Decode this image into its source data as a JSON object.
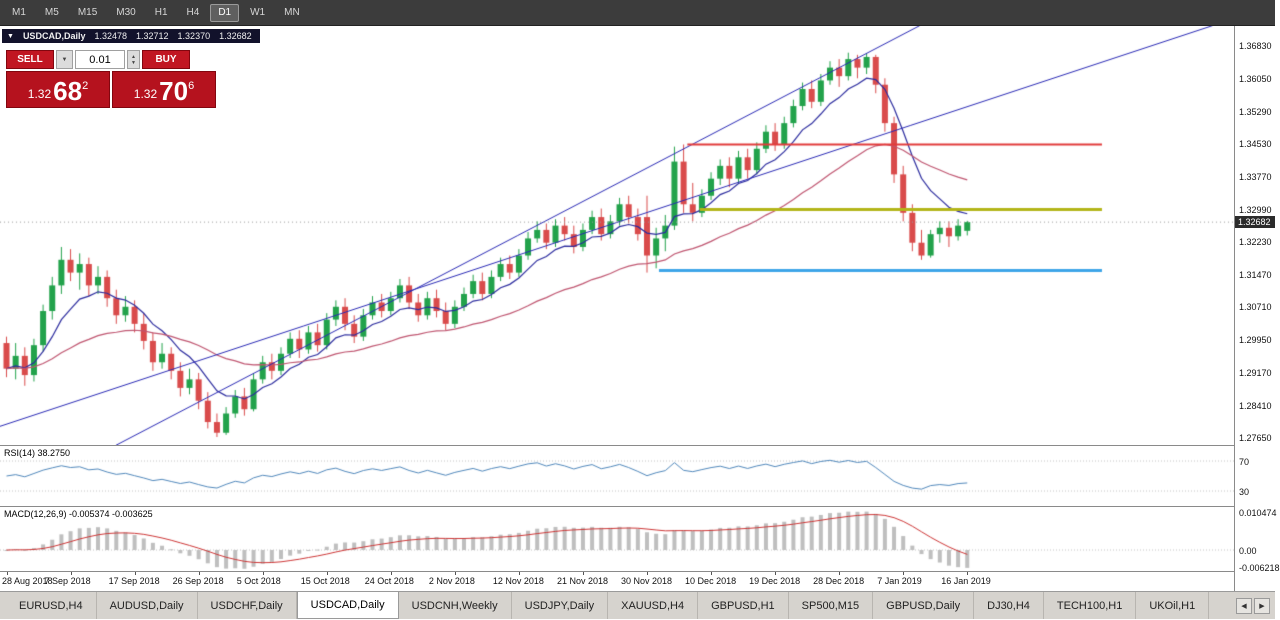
{
  "toolbar": {
    "timeframes": [
      "M1",
      "M5",
      "M15",
      "M30",
      "H1",
      "H4",
      "D1",
      "W1",
      "MN"
    ],
    "active_timeframe": "D1"
  },
  "chart": {
    "title": "USDCAD,Daily",
    "ohlc": {
      "open": "1.32478",
      "high": "1.32712",
      "low": "1.32370",
      "close": "1.32682"
    },
    "current_price": "1.32682",
    "price_axis": [
      "1.36830",
      "1.36050",
      "1.35290",
      "1.34530",
      "1.33770",
      "1.32990",
      "1.32230",
      "1.31470",
      "1.30710",
      "1.29950",
      "1.29170",
      "1.28410",
      "1.27650"
    ],
    "date_axis": [
      "28 Aug 2018",
      "7 Sep 2018",
      "17 Sep 2018",
      "26 Sep 2018",
      "5 Oct 2018",
      "15 Oct 2018",
      "24 Oct 2018",
      "2 Nov 2018",
      "12 Nov 2018",
      "21 Nov 2018",
      "30 Nov 2018",
      "10 Dec 2018",
      "19 Dec 2018",
      "28 Dec 2018",
      "7 Jan 2019",
      "16 Jan 2019"
    ]
  },
  "trade_panel": {
    "sell_label": "SELL",
    "buy_label": "BUY",
    "volume": "0.01",
    "sell_price": {
      "prefix": "1.32",
      "big": "68",
      "sup": "2"
    },
    "buy_price": {
      "prefix": "1.32",
      "big": "70",
      "sup": "6"
    }
  },
  "rsi": {
    "label": "RSI(14) 38.2750",
    "levels": [
      "70",
      "30"
    ]
  },
  "macd": {
    "label": "MACD(12,26,9) -0.005374 -0.003625",
    "axis": [
      "0.010474",
      "0.00",
      "-0.006218"
    ]
  },
  "tabs": {
    "items": [
      "EURUSD,H4",
      "AUDUSD,Daily",
      "USDCHF,Daily",
      "USDCAD,Daily",
      "USDCNH,Weekly",
      "USDJPY,Daily",
      "XAUUSD,H4",
      "GBPUSD,H1",
      "SP500,M15",
      "GBPUSD,Daily",
      "DJ30,H4",
      "TECH100,H1",
      "UKOil,H1"
    ],
    "active": "USDCAD,Daily"
  },
  "icons": {
    "chart_menu": "▼",
    "lot_down": "▼",
    "spin_up": "▲",
    "spin_down": "▼",
    "scroll_left": "◀",
    "scroll_right": "▶"
  },
  "colors": {
    "bull": "#22a24b",
    "bear": "#d94b4b",
    "ma_fast": "#2b2b9e",
    "ma_slow": "#bf5570",
    "trendline": "#2828b4",
    "rsi_line": "#4e86ba",
    "macd_signal": "#cc3333",
    "macd_hist": "#bfbfbf",
    "panel_red": "#b5121e"
  },
  "chart_data": {
    "type": "candlestick",
    "symbol": "USDCAD",
    "timeframe": "Daily",
    "price_range_axis": [
      1.2765,
      1.3683
    ],
    "moving_averages": [
      {
        "period": 8
      },
      {
        "period": 32
      }
    ],
    "horizontal_levels": [
      {
        "price": 1.345,
        "color": "#e23b3b",
        "width": 2,
        "x1": 0.557,
        "x2": 0.893
      },
      {
        "price": 1.3298,
        "color": "#b3b518",
        "width": 3,
        "x1": 0.567,
        "x2": 0.893
      },
      {
        "price": 1.3155,
        "color": "#3da5e8",
        "width": 3,
        "x1": 0.534,
        "x2": 0.893
      }
    ],
    "trendlines": [
      {
        "p1": [
          0.0,
          1.279
        ],
        "p2": [
          1.0,
          1.3745
        ]
      },
      {
        "p1": [
          0.13,
          1.28
        ],
        "p2": [
          0.7,
          1.366
        ]
      }
    ],
    "indicators": {
      "rsi": {
        "period": 14,
        "last": 38.275,
        "levels": [
          70,
          30
        ]
      },
      "macd": {
        "fast": 12,
        "slow": 26,
        "signal": 9,
        "last_macd": -0.005374,
        "last_signal": -0.003625
      }
    },
    "candles": [
      [
        1.2985,
        1.3,
        1.2905,
        1.2925
      ],
      [
        1.2925,
        1.2985,
        1.29,
        1.2955
      ],
      [
        1.2955,
        1.2975,
        1.2885,
        1.291
      ],
      [
        1.291,
        1.2995,
        1.2895,
        1.298
      ],
      [
        1.298,
        1.3075,
        1.2965,
        1.306
      ],
      [
        1.306,
        1.314,
        1.304,
        1.312
      ],
      [
        1.312,
        1.321,
        1.31,
        1.318
      ],
      [
        1.318,
        1.3205,
        1.313,
        1.315
      ],
      [
        1.315,
        1.3195,
        1.311,
        1.317
      ],
      [
        1.317,
        1.3185,
        1.3095,
        1.312
      ],
      [
        1.312,
        1.3165,
        1.31,
        1.314
      ],
      [
        1.314,
        1.3155,
        1.307,
        1.309
      ],
      [
        1.309,
        1.311,
        1.303,
        1.305
      ],
      [
        1.305,
        1.3095,
        1.3035,
        1.307
      ],
      [
        1.307,
        1.3085,
        1.301,
        1.303
      ],
      [
        1.303,
        1.3055,
        1.297,
        1.299
      ],
      [
        1.299,
        1.301,
        1.292,
        1.294
      ],
      [
        1.294,
        1.2985,
        1.2925,
        1.296
      ],
      [
        1.296,
        1.2975,
        1.29,
        1.292
      ],
      [
        1.292,
        1.294,
        1.286,
        1.288
      ],
      [
        1.288,
        1.2925,
        1.2865,
        1.29
      ],
      [
        1.29,
        1.2915,
        1.283,
        1.285
      ],
      [
        1.285,
        1.287,
        1.2785,
        1.28
      ],
      [
        1.28,
        1.282,
        1.2765,
        1.2775
      ],
      [
        1.2775,
        1.2835,
        1.277,
        1.282
      ],
      [
        1.282,
        1.2875,
        1.281,
        1.286
      ],
      [
        1.286,
        1.288,
        1.2815,
        1.283
      ],
      [
        1.283,
        1.2915,
        1.2825,
        1.29
      ],
      [
        1.29,
        1.2955,
        1.289,
        1.294
      ],
      [
        1.294,
        1.296,
        1.29,
        1.292
      ],
      [
        1.292,
        1.2975,
        1.291,
        1.296
      ],
      [
        1.296,
        1.301,
        1.295,
        1.2995
      ],
      [
        1.2995,
        1.3015,
        1.295,
        1.297
      ],
      [
        1.297,
        1.3025,
        1.296,
        1.301
      ],
      [
        1.301,
        1.303,
        1.2965,
        1.298
      ],
      [
        1.298,
        1.3055,
        1.297,
        1.304
      ],
      [
        1.304,
        1.3085,
        1.3025,
        1.307
      ],
      [
        1.307,
        1.309,
        1.3015,
        1.303
      ],
      [
        1.303,
        1.305,
        1.2985,
        1.3
      ],
      [
        1.3,
        1.3065,
        1.299,
        1.305
      ],
      [
        1.305,
        1.3095,
        1.304,
        1.308
      ],
      [
        1.308,
        1.31,
        1.3045,
        1.306
      ],
      [
        1.306,
        1.3105,
        1.305,
        1.309
      ],
      [
        1.309,
        1.3135,
        1.308,
        1.312
      ],
      [
        1.312,
        1.314,
        1.3065,
        1.308
      ],
      [
        1.308,
        1.31,
        1.3035,
        1.305
      ],
      [
        1.305,
        1.3105,
        1.304,
        1.309
      ],
      [
        1.309,
        1.311,
        1.3045,
        1.306
      ],
      [
        1.306,
        1.308,
        1.3015,
        1.303
      ],
      [
        1.303,
        1.3085,
        1.302,
        1.307
      ],
      [
        1.307,
        1.3115,
        1.306,
        1.31
      ],
      [
        1.31,
        1.3145,
        1.309,
        1.313
      ],
      [
        1.313,
        1.315,
        1.3085,
        1.31
      ],
      [
        1.31,
        1.3155,
        1.309,
        1.314
      ],
      [
        1.314,
        1.3185,
        1.313,
        1.317
      ],
      [
        1.317,
        1.319,
        1.3135,
        1.315
      ],
      [
        1.315,
        1.3205,
        1.314,
        1.319
      ],
      [
        1.319,
        1.3245,
        1.318,
        1.323
      ],
      [
        1.323,
        1.327,
        1.322,
        1.325
      ],
      [
        1.325,
        1.3265,
        1.3205,
        1.322
      ],
      [
        1.322,
        1.3275,
        1.321,
        1.326
      ],
      [
        1.326,
        1.328,
        1.3225,
        1.324
      ],
      [
        1.324,
        1.326,
        1.3195,
        1.321
      ],
      [
        1.321,
        1.3265,
        1.32,
        1.325
      ],
      [
        1.325,
        1.3295,
        1.324,
        1.328
      ],
      [
        1.328,
        1.33,
        1.3225,
        1.324
      ],
      [
        1.324,
        1.3285,
        1.323,
        1.327
      ],
      [
        1.327,
        1.3325,
        1.326,
        1.331
      ],
      [
        1.331,
        1.333,
        1.3265,
        1.328
      ],
      [
        1.328,
        1.33,
        1.3225,
        1.324
      ],
      [
        1.328,
        1.333,
        1.315,
        1.319
      ],
      [
        1.319,
        1.3255,
        1.316,
        1.323
      ],
      [
        1.323,
        1.3285,
        1.32,
        1.326
      ],
      [
        1.326,
        1.3445,
        1.325,
        1.341
      ],
      [
        1.341,
        1.345,
        1.329,
        1.331
      ],
      [
        1.331,
        1.336,
        1.327,
        1.329
      ],
      [
        1.329,
        1.3345,
        1.328,
        1.333
      ],
      [
        1.333,
        1.3385,
        1.332,
        1.337
      ],
      [
        1.337,
        1.3415,
        1.3355,
        1.34
      ],
      [
        1.34,
        1.342,
        1.335,
        1.337
      ],
      [
        1.337,
        1.3435,
        1.336,
        1.342
      ],
      [
        1.342,
        1.344,
        1.337,
        1.339
      ],
      [
        1.339,
        1.3455,
        1.338,
        1.344
      ],
      [
        1.344,
        1.3495,
        1.343,
        1.348
      ],
      [
        1.348,
        1.35,
        1.3435,
        1.345
      ],
      [
        1.345,
        1.3515,
        1.344,
        1.35
      ],
      [
        1.35,
        1.3555,
        1.349,
        1.354
      ],
      [
        1.354,
        1.3595,
        1.353,
        1.358
      ],
      [
        1.358,
        1.36,
        1.3535,
        1.355
      ],
      [
        1.355,
        1.3615,
        1.354,
        1.36
      ],
      [
        1.36,
        1.3645,
        1.359,
        1.363
      ],
      [
        1.363,
        1.365,
        1.3585,
        1.361
      ],
      [
        1.361,
        1.3665,
        1.36,
        1.365
      ],
      [
        1.365,
        1.366,
        1.3605,
        1.363
      ],
      [
        1.363,
        1.3664,
        1.3615,
        1.3655
      ],
      [
        1.3655,
        1.366,
        1.357,
        1.359
      ],
      [
        1.359,
        1.3605,
        1.348,
        1.35
      ],
      [
        1.35,
        1.3515,
        1.336,
        1.338
      ],
      [
        1.338,
        1.34,
        1.327,
        1.329
      ],
      [
        1.329,
        1.331,
        1.32,
        1.322
      ],
      [
        1.322,
        1.325,
        1.318,
        1.319
      ],
      [
        1.319,
        1.325,
        1.3185,
        1.324
      ],
      [
        1.324,
        1.327,
        1.322,
        1.3255
      ],
      [
        1.3255,
        1.327,
        1.321,
        1.3235
      ],
      [
        1.3235,
        1.3275,
        1.3225,
        1.326
      ],
      [
        1.32478,
        1.32712,
        1.3237,
        1.32682
      ]
    ]
  }
}
